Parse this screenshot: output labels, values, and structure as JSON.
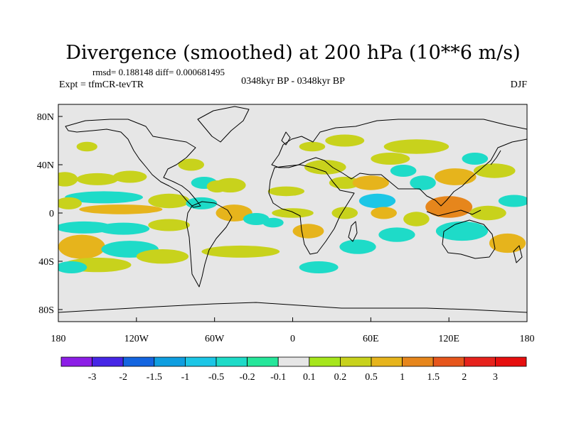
{
  "chart_data": {
    "type": "heatmap",
    "title": "Divergence (smoothed) at 200 hPa (10**6 m/s)",
    "stats": "rmsd= 0.188148 diff= 0.000681495",
    "experiment": "Expt = tfmCR-tevTR",
    "period": "0348kyr BP - 0348kyr BP",
    "season": "DJF",
    "xlabel": "",
    "ylabel": "",
    "xlim": [
      -180,
      180
    ],
    "ylim": [
      -90,
      90
    ],
    "x_ticks": [
      {
        "value": -180,
        "label": "180"
      },
      {
        "value": -120,
        "label": "120W"
      },
      {
        "value": -60,
        "label": "60W"
      },
      {
        "value": 0,
        "label": "0"
      },
      {
        "value": 60,
        "label": "60E"
      },
      {
        "value": 120,
        "label": "120E"
      },
      {
        "value": 180,
        "label": "180"
      }
    ],
    "y_ticks": [
      {
        "value": 80,
        "label": "80N"
      },
      {
        "value": 40,
        "label": "40N"
      },
      {
        "value": 0,
        "label": "0"
      },
      {
        "value": -40,
        "label": "40S"
      },
      {
        "value": -80,
        "label": "80S"
      }
    ],
    "colorbar": {
      "labels": [
        "-3",
        "-2",
        "-1.5",
        "-1",
        "-0.5",
        "-0.2",
        "-0.1",
        "0.1",
        "0.2",
        "0.5",
        "1",
        "1.5",
        "2",
        "3"
      ],
      "colors": [
        "#8c1ee6",
        "#4626e6",
        "#1465e0",
        "#0f9ee0",
        "#1cc6e6",
        "#1edbc8",
        "#25e69a",
        "#e6e6e6",
        "#a6e61c",
        "#c8d21c",
        "#e6b41c",
        "#e6861c",
        "#e6561c",
        "#e6221c",
        "#e60f0f"
      ]
    },
    "anomalies": [
      {
        "lon": -175,
        "lat": 28,
        "rx": 10,
        "ry": 6,
        "v": 0.3
      },
      {
        "lon": -150,
        "lat": 28,
        "rx": 16,
        "ry": 5,
        "v": 0.3
      },
      {
        "lon": -125,
        "lat": 30,
        "rx": 13,
        "ry": 5,
        "v": 0.4
      },
      {
        "lon": -145,
        "lat": 13,
        "rx": 30,
        "ry": 5,
        "v": -0.3
      },
      {
        "lon": -172,
        "lat": 8,
        "rx": 10,
        "ry": 5,
        "v": 0.3
      },
      {
        "lon": -132,
        "lat": 3,
        "rx": 32,
        "ry": 4,
        "v": 0.5
      },
      {
        "lon": -95,
        "lat": 10,
        "rx": 16,
        "ry": 6,
        "v": 0.4
      },
      {
        "lon": -70,
        "lat": 8,
        "rx": 12,
        "ry": 5,
        "v": -0.4
      },
      {
        "lon": -160,
        "lat": -12,
        "rx": 22,
        "ry": 5,
        "v": -0.4
      },
      {
        "lon": -130,
        "lat": -13,
        "rx": 20,
        "ry": 5,
        "v": -0.3
      },
      {
        "lon": -95,
        "lat": -10,
        "rx": 16,
        "ry": 5,
        "v": 0.3
      },
      {
        "lon": -162,
        "lat": -28,
        "rx": 18,
        "ry": 10,
        "v": 0.8
      },
      {
        "lon": -125,
        "lat": -30,
        "rx": 22,
        "ry": 7,
        "v": -0.4
      },
      {
        "lon": -150,
        "lat": -43,
        "rx": 26,
        "ry": 6,
        "v": 0.3
      },
      {
        "lon": -100,
        "lat": -36,
        "rx": 20,
        "ry": 6,
        "v": 0.3
      },
      {
        "lon": -68,
        "lat": 25,
        "rx": 10,
        "ry": 5,
        "v": -0.4
      },
      {
        "lon": -58,
        "lat": 22,
        "rx": 8,
        "ry": 5,
        "v": 0.3
      },
      {
        "lon": -48,
        "lat": 23,
        "rx": 12,
        "ry": 6,
        "v": 0.4
      },
      {
        "lon": -78,
        "lat": 40,
        "rx": 10,
        "ry": 5,
        "v": 0.3
      },
      {
        "lon": -45,
        "lat": 0,
        "rx": 14,
        "ry": 7,
        "v": 0.7
      },
      {
        "lon": -28,
        "lat": -5,
        "rx": 10,
        "ry": 5,
        "v": -0.4
      },
      {
        "lon": -40,
        "lat": -32,
        "rx": 30,
        "ry": 5,
        "v": 0.3
      },
      {
        "lon": -5,
        "lat": 18,
        "rx": 14,
        "ry": 4,
        "v": 0.3
      },
      {
        "lon": 0,
        "lat": 0,
        "rx": 16,
        "ry": 4,
        "v": 0.4
      },
      {
        "lon": -15,
        "lat": -8,
        "rx": 8,
        "ry": 4,
        "v": -0.4
      },
      {
        "lon": 12,
        "lat": -15,
        "rx": 12,
        "ry": 6,
        "v": 0.7
      },
      {
        "lon": 25,
        "lat": 38,
        "rx": 16,
        "ry": 6,
        "v": 0.3
      },
      {
        "lon": 40,
        "lat": 25,
        "rx": 12,
        "ry": 5,
        "v": 0.4
      },
      {
        "lon": 60,
        "lat": 25,
        "rx": 14,
        "ry": 6,
        "v": 0.6
      },
      {
        "lon": 65,
        "lat": 10,
        "rx": 14,
        "ry": 6,
        "v": -0.6
      },
      {
        "lon": 40,
        "lat": 0,
        "rx": 10,
        "ry": 5,
        "v": 0.3
      },
      {
        "lon": 70,
        "lat": 0,
        "rx": 10,
        "ry": 5,
        "v": 0.5
      },
      {
        "lon": 50,
        "lat": -28,
        "rx": 14,
        "ry": 6,
        "v": -0.4
      },
      {
        "lon": 80,
        "lat": -18,
        "rx": 14,
        "ry": 6,
        "v": -0.4
      },
      {
        "lon": 95,
        "lat": -5,
        "rx": 10,
        "ry": 6,
        "v": 0.4
      },
      {
        "lon": 125,
        "lat": 30,
        "rx": 16,
        "ry": 7,
        "v": 0.8
      },
      {
        "lon": 155,
        "lat": 35,
        "rx": 16,
        "ry": 6,
        "v": 0.4
      },
      {
        "lon": 120,
        "lat": 5,
        "rx": 18,
        "ry": 9,
        "v": 1.2
      },
      {
        "lon": 130,
        "lat": -15,
        "rx": 20,
        "ry": 8,
        "v": -0.5
      },
      {
        "lon": 150,
        "lat": 0,
        "rx": 14,
        "ry": 6,
        "v": 0.4
      },
      {
        "lon": 165,
        "lat": -25,
        "rx": 14,
        "ry": 8,
        "v": 0.5
      },
      {
        "lon": 170,
        "lat": 10,
        "rx": 12,
        "ry": 5,
        "v": -0.4
      },
      {
        "lon": 15,
        "lat": 55,
        "rx": 10,
        "ry": 4,
        "v": 0.3
      },
      {
        "lon": 40,
        "lat": 60,
        "rx": 15,
        "ry": 5,
        "v": 0.3
      },
      {
        "lon": 95,
        "lat": 55,
        "rx": 25,
        "ry": 6,
        "v": 0.3
      },
      {
        "lon": 75,
        "lat": 45,
        "rx": 15,
        "ry": 5,
        "v": 0.3
      },
      {
        "lon": -158,
        "lat": 55,
        "rx": 8,
        "ry": 4,
        "v": 0.3
      },
      {
        "lon": 100,
        "lat": 25,
        "rx": 10,
        "ry": 6,
        "v": -0.3
      },
      {
        "lon": 85,
        "lat": 35,
        "rx": 10,
        "ry": 5,
        "v": -0.3
      },
      {
        "lon": -170,
        "lat": -45,
        "rx": 12,
        "ry": 5,
        "v": -0.3
      },
      {
        "lon": 20,
        "lat": -45,
        "rx": 15,
        "ry": 5,
        "v": -0.3
      },
      {
        "lon": 140,
        "lat": 45,
        "rx": 10,
        "ry": 5,
        "v": -0.3
      }
    ]
  }
}
